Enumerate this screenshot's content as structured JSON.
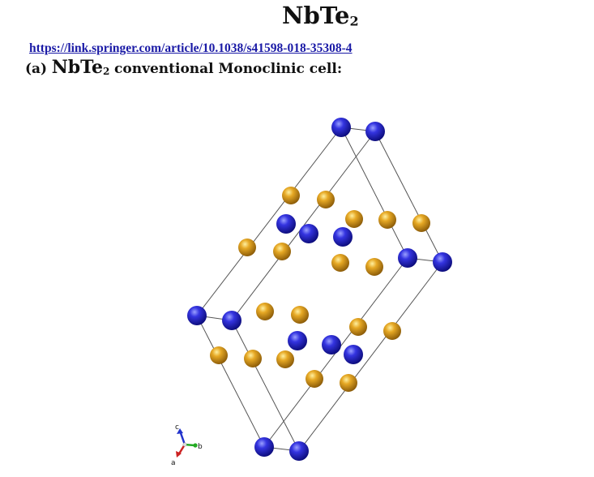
{
  "title": {
    "formula": "NbTe",
    "subscript": "2"
  },
  "source_link": "https://link.springer.com/article/10.1038/s41598-018-35308-4",
  "caption": {
    "tag": "(a)",
    "formula": "NbTe",
    "subscript": "2",
    "text": "conventional Monoclinic cell:"
  },
  "atoms": {
    "nb_color": "#2a2ad6",
    "te_color": "#e0a020"
  },
  "axes": {
    "a": "a",
    "b": "b",
    "c": "c"
  }
}
